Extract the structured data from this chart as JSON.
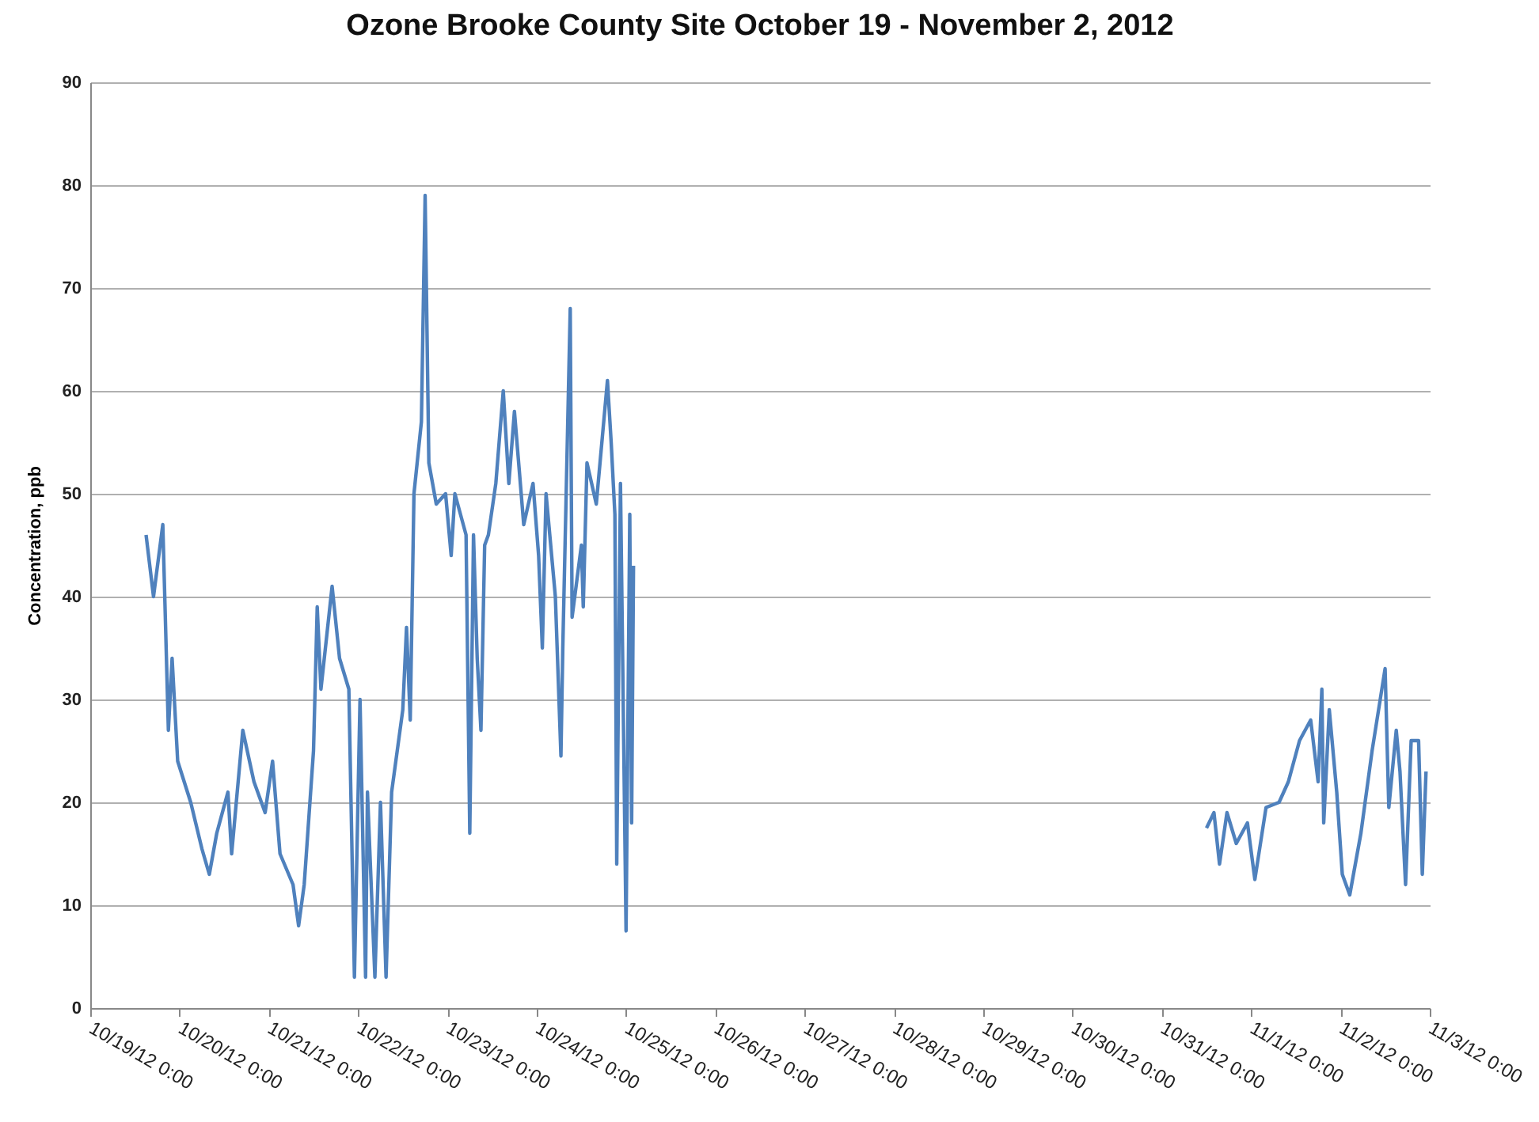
{
  "chart_data": {
    "type": "line",
    "title": "Ozone Brooke County Site October 19 - November 2, 2012",
    "ylabel": "Concentration, ppb",
    "x": [
      "2012-10-19T15:00",
      "2012-10-19T17:00",
      "2012-10-19T19:30",
      "2012-10-19T21:00",
      "2012-10-19T22:00",
      "2012-10-19T23:30",
      "2012-10-20T03:00",
      "2012-10-20T06:00",
      "2012-10-20T08:00",
      "2012-10-20T10:00",
      "2012-10-20T13:00",
      "2012-10-20T14:00",
      "2012-10-20T17:00",
      "2012-10-20T20:00",
      "2012-10-20T23:00",
      "2012-10-21T01:00",
      "2012-10-21T03:00",
      "2012-10-21T06:30",
      "2012-10-21T08:00",
      "2012-10-21T09:30",
      "2012-10-21T12:00",
      "2012-10-21T13:00",
      "2012-10-21T14:00",
      "2012-10-21T17:00",
      "2012-10-21T19:00",
      "2012-10-21T21:30",
      "2012-10-21T23:00",
      "2012-10-22T00:30",
      "2012-10-22T02:00",
      "2012-10-22T02:30",
      "2012-10-22T04:30",
      "2012-10-22T06:00",
      "2012-10-22T07:30",
      "2012-10-22T09:00",
      "2012-10-22T12:00",
      "2012-10-22T13:00",
      "2012-10-22T14:00",
      "2012-10-22T15:00",
      "2012-10-22T17:00",
      "2012-10-22T18:00",
      "2012-10-22T19:00",
      "2012-10-22T21:00",
      "2012-10-22T23:30",
      "2012-10-23T01:00",
      "2012-10-23T02:00",
      "2012-10-23T05:00",
      "2012-10-23T06:00",
      "2012-10-23T07:00",
      "2012-10-23T08:00",
      "2012-10-23T09:00",
      "2012-10-23T10:00",
      "2012-10-23T11:00",
      "2012-10-23T13:00",
      "2012-10-23T15:00",
      "2012-10-23T16:30",
      "2012-10-23T18:00",
      "2012-10-23T20:30",
      "2012-10-23T23:00",
      "2012-10-24T00:30",
      "2012-10-24T01:30",
      "2012-10-24T02:30",
      "2012-10-24T05:00",
      "2012-10-24T06:30",
      "2012-10-24T07:00",
      "2012-10-24T09:00",
      "2012-10-24T09:30",
      "2012-10-24T12:00",
      "2012-10-24T12:30",
      "2012-10-24T13:30",
      "2012-10-24T16:00",
      "2012-10-24T19:00",
      "2012-10-24T20:00",
      "2012-10-24T21:00",
      "2012-10-24T21:30",
      "2012-10-24T22:30",
      "2012-10-25T00:00",
      "2012-10-25T01:00",
      "2012-10-25T01:30",
      "2012-10-25T02:00",
      "2012-10-28T00:00",
      "2012-10-31T12:00",
      "2012-10-31T14:00",
      "2012-10-31T15:30",
      "2012-10-31T17:30",
      "2012-10-31T20:00",
      "2012-10-31T23:00",
      "2012-11-01T01:00",
      "2012-11-01T04:00",
      "2012-11-01T07:30",
      "2012-11-01T10:00",
      "2012-11-01T13:00",
      "2012-11-01T16:00",
      "2012-11-01T18:00",
      "2012-11-01T19:00",
      "2012-11-01T19:30",
      "2012-11-01T21:00",
      "2012-11-01T23:00",
      "2012-11-02T00:30",
      "2012-11-02T02:30",
      "2012-11-02T05:30",
      "2012-11-02T08:30",
      "2012-11-02T12:00",
      "2012-11-02T13:00",
      "2012-11-02T15:00",
      "2012-11-02T16:00",
      "2012-11-02T17:30",
      "2012-11-02T19:00",
      "2012-11-02T21:00",
      "2012-11-02T22:00",
      "2012-11-02T23:00"
    ],
    "series": [
      {
        "color": "#4f81bd",
        "values": [
          46,
          40,
          47,
          27,
          34,
          24,
          20,
          15.5,
          13,
          17,
          21,
          15,
          27,
          22,
          19,
          24,
          15,
          12,
          8,
          12,
          25,
          39,
          31,
          41,
          34,
          31,
          3,
          30,
          3,
          21,
          3,
          20,
          3,
          21,
          29,
          37,
          28,
          50,
          57,
          79,
          53,
          49,
          50,
          44,
          50,
          46,
          17,
          46,
          34,
          27,
          45,
          46,
          51,
          60,
          51,
          58,
          47,
          51,
          44,
          35,
          50,
          40,
          24.5,
          35,
          68,
          38,
          45,
          39,
          53,
          49,
          61,
          55,
          48,
          14,
          51,
          7.5,
          48,
          18,
          43,
          null,
          17.5,
          19,
          14,
          19,
          16,
          18,
          12.5,
          19.5,
          20,
          22,
          26,
          28,
          22,
          31,
          18,
          29,
          21,
          13,
          11,
          17,
          25,
          33,
          19.5,
          27,
          23,
          12,
          26,
          26,
          13,
          23
        ]
      }
    ],
    "xlim": [
      "2012-10-19T00:00",
      "2012-11-03T00:00"
    ],
    "xticks": [
      {
        "value": "2012-10-19T00:00",
        "label": "10/19/12 0:00"
      },
      {
        "value": "2012-10-20T00:00",
        "label": "10/20/12 0:00"
      },
      {
        "value": "2012-10-21T00:00",
        "label": "10/21/12 0:00"
      },
      {
        "value": "2012-10-22T00:00",
        "label": "10/22/12 0:00"
      },
      {
        "value": "2012-10-23T00:00",
        "label": "10/23/12 0:00"
      },
      {
        "value": "2012-10-24T00:00",
        "label": "10/24/12 0:00"
      },
      {
        "value": "2012-10-25T00:00",
        "label": "10/25/12 0:00"
      },
      {
        "value": "2012-10-26T00:00",
        "label": "10/26/12 0:00"
      },
      {
        "value": "2012-10-27T00:00",
        "label": "10/27/12 0:00"
      },
      {
        "value": "2012-10-28T00:00",
        "label": "10/28/12 0:00"
      },
      {
        "value": "2012-10-29T00:00",
        "label": "10/29/12 0:00"
      },
      {
        "value": "2012-10-30T00:00",
        "label": "10/30/12 0:00"
      },
      {
        "value": "2012-10-31T00:00",
        "label": "10/31/12 0:00"
      },
      {
        "value": "2012-11-01T00:00",
        "label": "11/1/12 0:00"
      },
      {
        "value": "2012-11-02T00:00",
        "label": "11/2/12 0:00"
      },
      {
        "value": "2012-11-03T00:00",
        "label": "11/3/12 0:00"
      }
    ],
    "ylim": [
      0,
      90
    ],
    "yticks": [
      0,
      10,
      20,
      30,
      40,
      50,
      60,
      70,
      80,
      90
    ],
    "grid": "y",
    "line_style": "solid"
  }
}
